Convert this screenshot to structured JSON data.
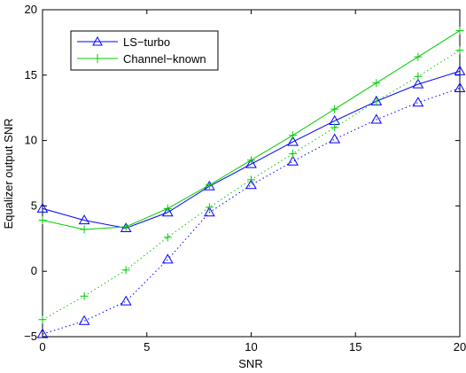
{
  "chart_data": {
    "type": "line",
    "xlabel": "SNR",
    "ylabel": "Equalizer output SNR",
    "xlim": [
      0,
      20
    ],
    "ylim": [
      -5,
      20
    ],
    "xticks": [
      0,
      5,
      10,
      15,
      20
    ],
    "yticks": [
      -5,
      0,
      5,
      10,
      15,
      20
    ],
    "xtick_labels": [
      "0",
      "5",
      "10",
      "15",
      "20"
    ],
    "ytick_labels": [
      "−5",
      "0",
      "5",
      "10",
      "15",
      "20"
    ],
    "grid": false,
    "legend_position": "top-left",
    "x": [
      0,
      2,
      4,
      6,
      8,
      10,
      12,
      14,
      16,
      18,
      20
    ],
    "series": [
      {
        "name": "LS−turbo",
        "color": "#0000ff",
        "marker": "triangle",
        "line": "solid",
        "values": [
          4.8,
          3.9,
          3.3,
          4.5,
          6.5,
          8.2,
          9.9,
          11.5,
          13.0,
          14.3,
          15.3
        ]
      },
      {
        "name": "Channel−known",
        "color": "#00cc00",
        "marker": "plus",
        "line": "solid",
        "values": [
          3.9,
          3.2,
          3.4,
          4.8,
          6.6,
          8.5,
          10.4,
          12.4,
          14.4,
          16.4,
          18.4
        ]
      },
      {
        "name": "",
        "color": "#0000ff",
        "marker": "triangle",
        "line": "dotted",
        "values": [
          -4.8,
          -3.8,
          -2.3,
          0.9,
          4.5,
          6.6,
          8.4,
          10.1,
          11.6,
          12.9,
          14.0
        ]
      },
      {
        "name": "",
        "color": "#00cc00",
        "marker": "plus",
        "line": "dotted",
        "values": [
          -3.7,
          -1.9,
          0.1,
          2.6,
          4.9,
          7.0,
          9.0,
          11.0,
          13.0,
          14.9,
          16.9
        ]
      }
    ]
  }
}
